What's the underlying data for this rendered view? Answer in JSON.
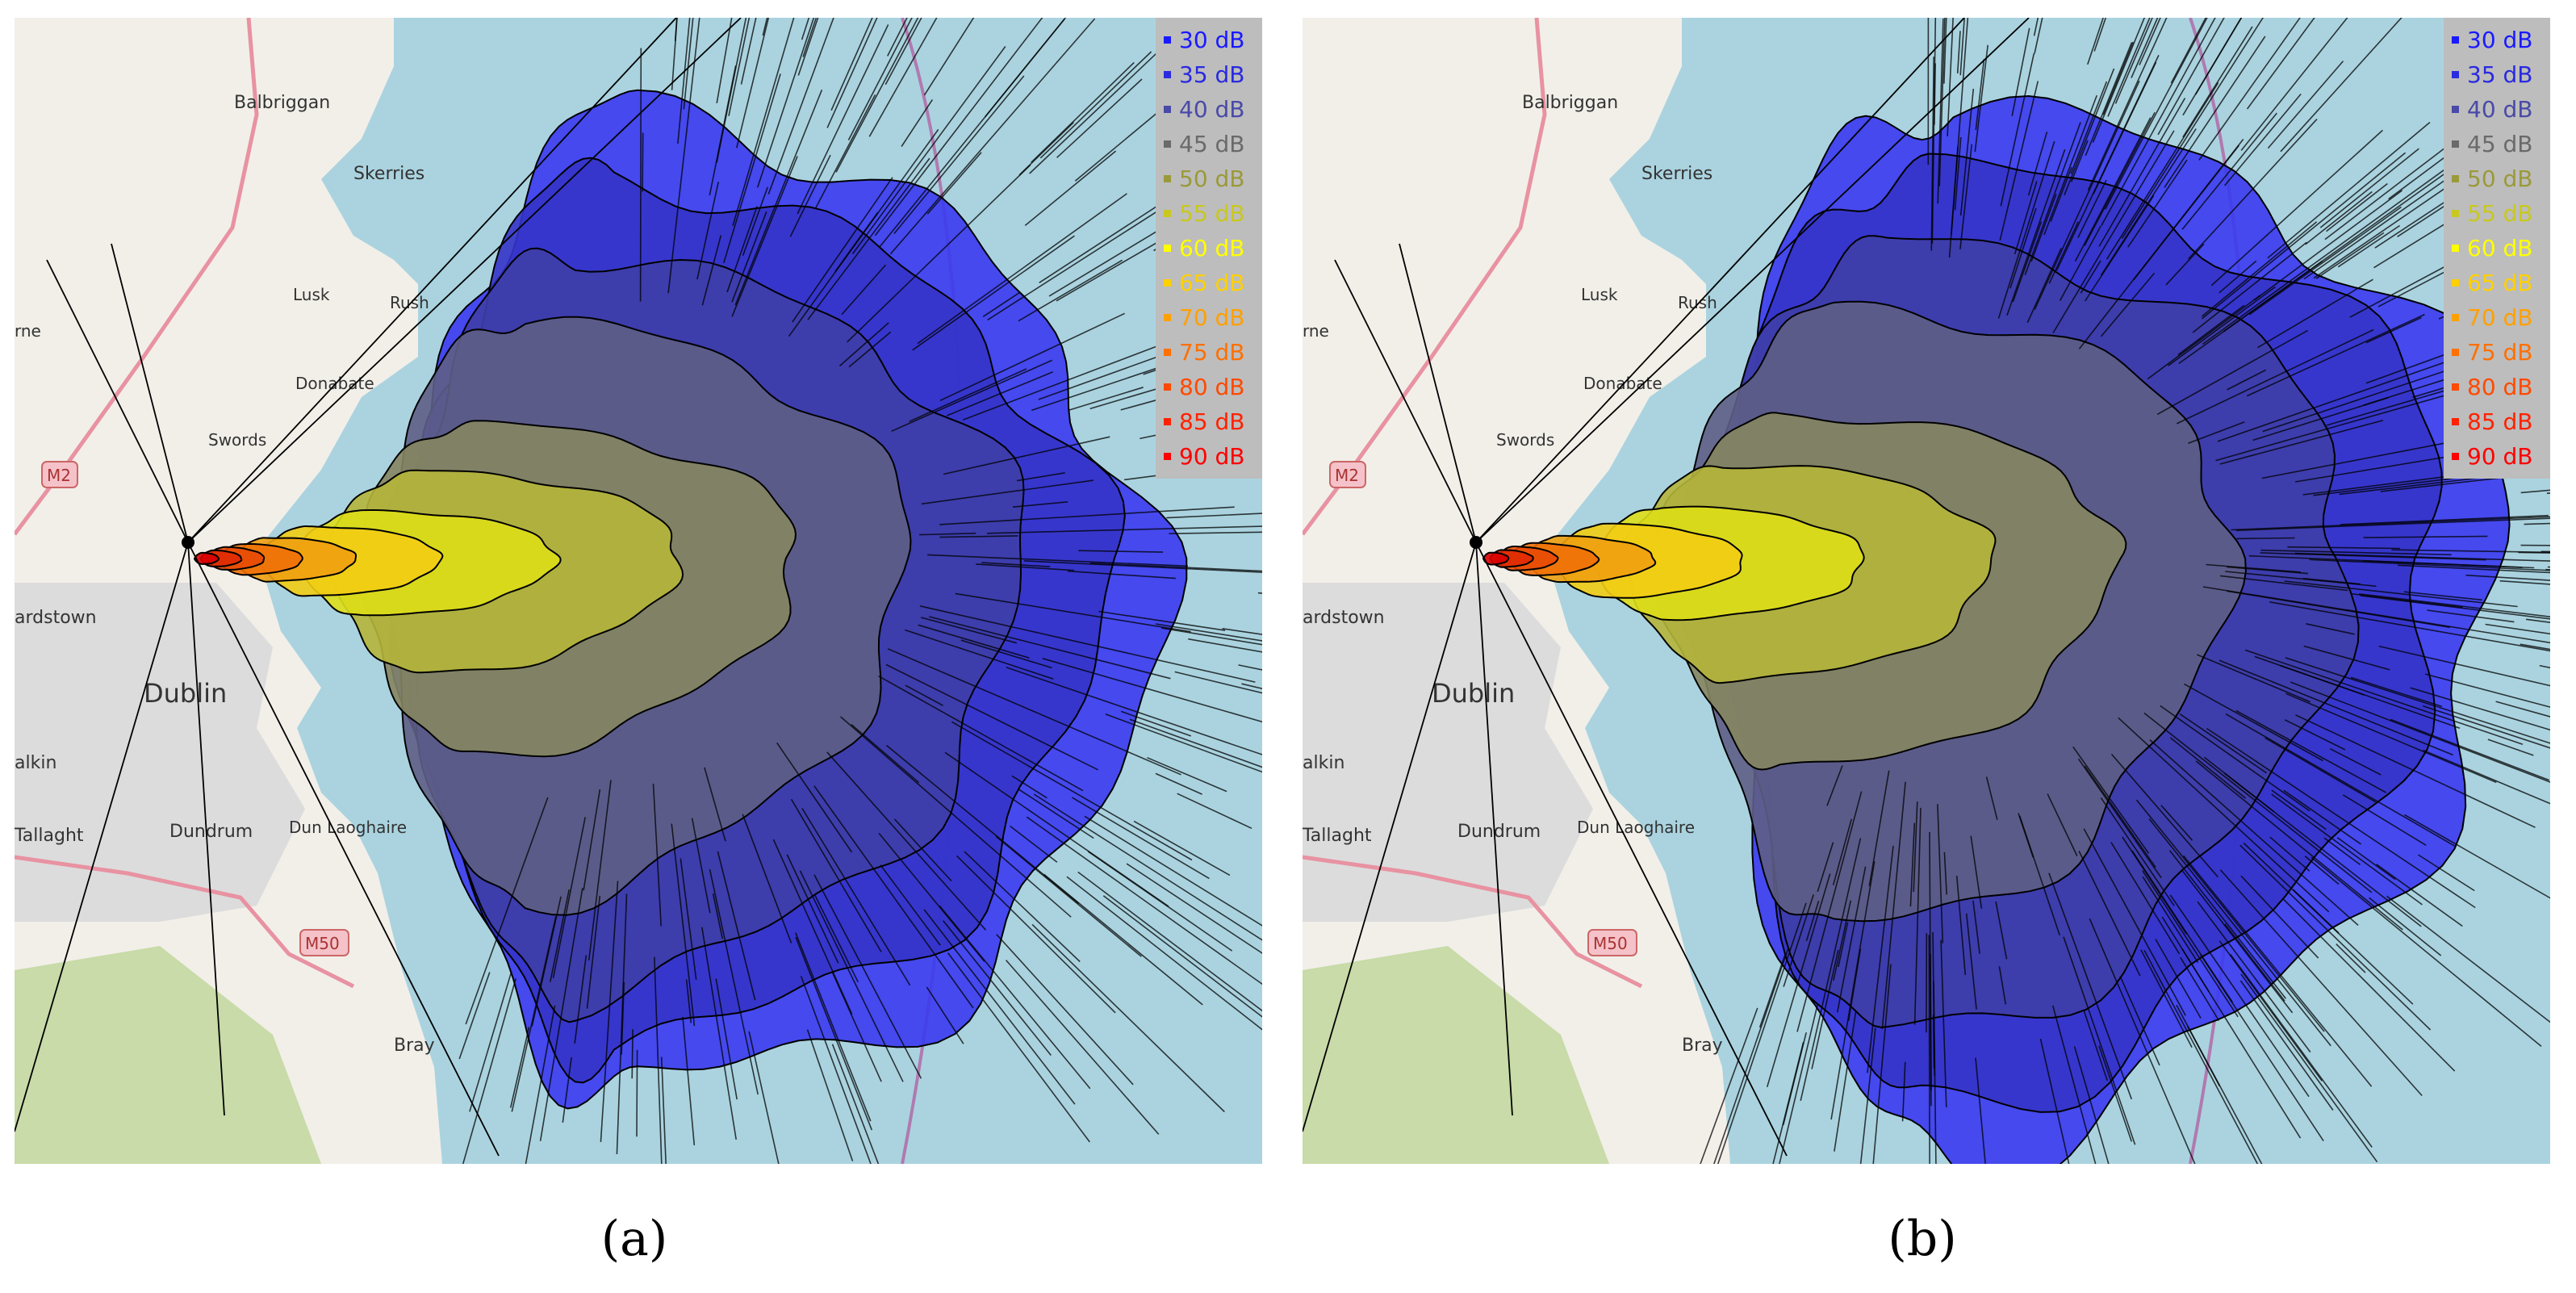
{
  "panels": [
    {
      "id": "a",
      "caption": "(a)",
      "places": [
        {
          "name": "Balbriggan",
          "size": 22
        },
        {
          "name": "Skerries",
          "size": 22
        },
        {
          "name": "Lusk",
          "size": 20
        },
        {
          "name": "Rush",
          "size": 20
        },
        {
          "name": "Donabate",
          "size": 20
        },
        {
          "name": "Swords",
          "size": 20
        },
        {
          "name": "rne",
          "size": 20
        },
        {
          "name": "ardstown",
          "size": 22
        },
        {
          "name": "Dublin",
          "size": 32
        },
        {
          "name": "alkin",
          "size": 22
        },
        {
          "name": "Tallaght",
          "size": 22
        },
        {
          "name": "Dundrum",
          "size": 22
        },
        {
          "name": "Dun Laoghaire",
          "size": 20
        },
        {
          "name": "Bray",
          "size": 22
        }
      ],
      "road_labels": [
        "M2",
        "M50"
      ]
    },
    {
      "id": "b",
      "caption": "(b)",
      "places": [
        {
          "name": "Balbriggan",
          "size": 22
        },
        {
          "name": "Skerries",
          "size": 22
        },
        {
          "name": "Lusk",
          "size": 20
        },
        {
          "name": "Rush",
          "size": 20
        },
        {
          "name": "Donabate",
          "size": 20
        },
        {
          "name": "Swords",
          "size": 20
        },
        {
          "name": "rne",
          "size": 20
        },
        {
          "name": "ardstown",
          "size": 22
        },
        {
          "name": "Dublin",
          "size": 32
        },
        {
          "name": "alkin",
          "size": 22
        },
        {
          "name": "Tallaght",
          "size": 22
        },
        {
          "name": "Dundrum",
          "size": 22
        },
        {
          "name": "Dun Laoghaire",
          "size": 20
        },
        {
          "name": "Bray",
          "size": 22
        }
      ],
      "road_labels": [
        "M2",
        "M50"
      ]
    }
  ],
  "legend": [
    {
      "label": "30 dB",
      "color": "#1a1aff"
    },
    {
      "label": "35 dB",
      "color": "#2a2ae0"
    },
    {
      "label": "40 dB",
      "color": "#4a4aa8"
    },
    {
      "label": "45 dB",
      "color": "#6a6a6a"
    },
    {
      "label": "50 dB",
      "color": "#9a9a3a"
    },
    {
      "label": "55 dB",
      "color": "#c8c820"
    },
    {
      "label": "60 dB",
      "color": "#ffff00"
    },
    {
      "label": "65 dB",
      "color": "#ffd000"
    },
    {
      "label": "70 dB",
      "color": "#ffa000"
    },
    {
      "label": "75 dB",
      "color": "#ff7000"
    },
    {
      "label": "80 dB",
      "color": "#ff4a00"
    },
    {
      "label": "85 dB",
      "color": "#ff2200"
    },
    {
      "label": "90 dB",
      "color": "#ff0000"
    }
  ],
  "colors": {
    "sea": "#aad3df",
    "land": "#f2efe9",
    "urban": "#dcdcdc",
    "forest": "#c8dba8",
    "motorway": "#e892a2",
    "contour_line": "#000000"
  }
}
